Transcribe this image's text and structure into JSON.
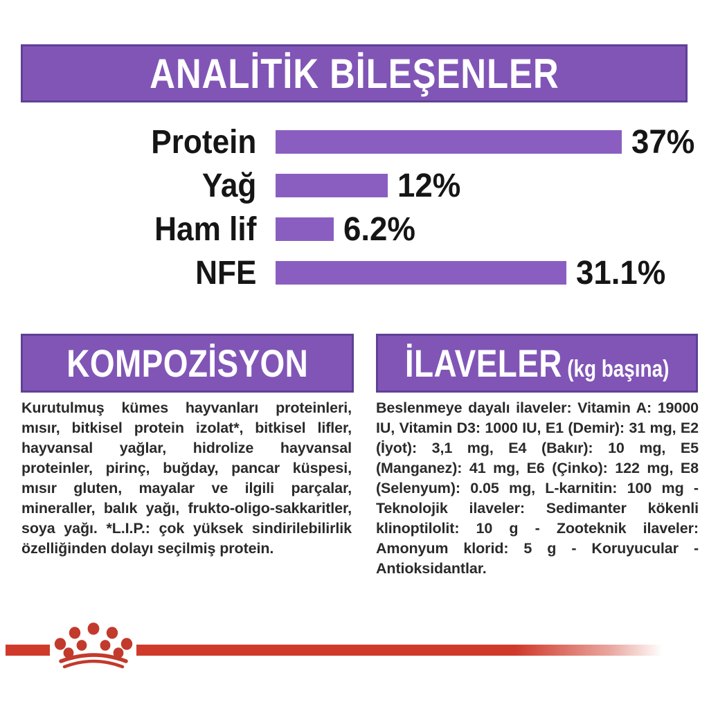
{
  "header": {
    "title": "ANALİTİK BİLEŞENLER"
  },
  "chart_data": {
    "type": "bar",
    "orientation": "horizontal",
    "title": "ANALİTİK BİLEŞENLER",
    "categories": [
      "Protein",
      "Yağ",
      "Ham lif",
      "NFE"
    ],
    "values": [
      37,
      12,
      6.2,
      31.1
    ],
    "value_labels": [
      "37%",
      "12%",
      "6.2%",
      "31.1%"
    ],
    "value_suffix": "%",
    "xlim": [
      0,
      44
    ],
    "grid": false,
    "legend": false,
    "bar_color": "#8a5ec1",
    "label_color": "#151515"
  },
  "sections": {
    "composition": {
      "title": "KOMPOZİSYON",
      "body": "Kurutulmuş kümes hayvanları proteinleri, mısır, bitkisel protein izolat*, bitkisel lifler, hayvansal yağlar, hidrolize hayvansal proteinler, pirinç, buğday, pancar küspesi, mısır gluten, mayalar ve ilgili parçalar, mineraller, balık yağı, frukto-oligo-sakkaritler, soya yağı. *L.I.P.: çok yüksek sindirilebilirlik özelliğinden dolayı seçilmiş protein."
    },
    "additives": {
      "title": "İLAVELER",
      "subtitle": "(kg başına)",
      "body": "Beslenmeye dayalı ilaveler: Vitamin A: 19000 IU, Vitamin D3: 1000 IU, E1 (Demir): 31 mg, E2 (İyot): 3,1 mg, E4 (Bakır): 10 mg, E5 (Manganez): 41 mg, E6 (Çinko): 122 mg, E8 (Selenyum): 0.05 mg, L-karnitin: 100 mg - Teknolojik ilaveler: Sedimanter kökenli klinoptilolit: 10 g - Zooteknik ilaveler: Amonyum klorid: 5 g - Koruyucular - Antioksidantlar."
    }
  },
  "footer": {
    "logo_icon": "royal-canin-crown-icon"
  },
  "colors": {
    "header_purple": "#8155b6",
    "header_border": "#5e4195",
    "bar_purple": "#8a5ec1",
    "brand_red": "#cf3a2b",
    "text_dark": "#2a2a2a"
  }
}
